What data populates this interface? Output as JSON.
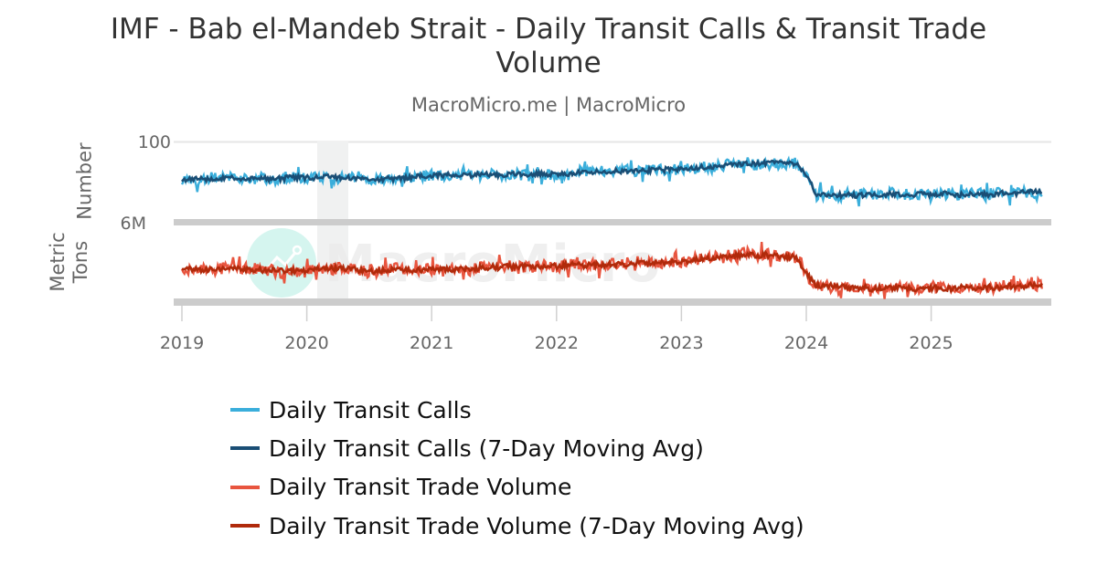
{
  "header": {
    "title_line1": "IMF - Bab el-Mandeb Strait - Daily Transit Calls & Transit Trade",
    "title_line2": "Volume",
    "subtitle": "MacroMicro.me | MacroMicro"
  },
  "watermark": {
    "text": "MacroMicro",
    "logo_color": "#d5f5ef"
  },
  "axes": {
    "top_panel": {
      "label": "Number",
      "tick_label": "100"
    },
    "bottom_panel": {
      "label_line1": "Metric",
      "label_line2": "Tons",
      "tick_label": "6M"
    },
    "x_ticks": [
      "2019",
      "2020",
      "2021",
      "2022",
      "2023",
      "2024",
      "2025"
    ]
  },
  "legend": [
    {
      "label": "Daily Transit Calls",
      "color": "#3aaedb"
    },
    {
      "label": "Daily Transit Calls (7-Day Moving Avg)",
      "color": "#1a4e75"
    },
    {
      "label": "Daily Transit Trade Volume",
      "color": "#e8553f"
    },
    {
      "label": "Daily Transit Trade Volume (7-Day Moving Avg)",
      "color": "#b02a0b"
    }
  ],
  "chart_data": [
    {
      "type": "line",
      "title": "IMF - Bab el-Mandeb Strait - Daily Transit Calls & Transit Trade Volume",
      "subtitle": "MacroMicro.me | MacroMicro",
      "panel": "top",
      "ylabel": "Number",
      "ylim": [
        0,
        100
      ],
      "y_ticks": [
        100
      ],
      "x_ticks": [
        "2019",
        "2020",
        "2021",
        "2022",
        "2023",
        "2024",
        "2025"
      ],
      "x_range": [
        "2019-01-01",
        "2025-11"
      ],
      "grid": true,
      "shaded_period": [
        "2020-02",
        "2020-05"
      ],
      "x": [
        "2019-01",
        "2019-07",
        "2020-01",
        "2020-04",
        "2020-07",
        "2021-01",
        "2021-04",
        "2021-07",
        "2022-01",
        "2022-07",
        "2023-01",
        "2023-07",
        "2023-11",
        "2023-12",
        "2024-01",
        "2024-02",
        "2024-07",
        "2025-01",
        "2025-07",
        "2025-11"
      ],
      "series": [
        {
          "name": "Daily Transit Calls",
          "color": "#3aaedb",
          "noise": 7,
          "values": [
            53,
            54,
            55,
            56,
            52,
            57,
            58,
            59,
            60,
            63,
            66,
            72,
            75,
            74,
            55,
            34,
            33,
            34,
            34,
            38
          ]
        },
        {
          "name": "Daily Transit Calls (7-Day Moving Avg)",
          "color": "#1a4e75",
          "noise": 3,
          "values": [
            53,
            54,
            55,
            56,
            52,
            57,
            58,
            59,
            60,
            63,
            66,
            72,
            75,
            74,
            55,
            34,
            33,
            34,
            34,
            38
          ]
        }
      ]
    },
    {
      "type": "line",
      "panel": "bottom",
      "ylabel": "Metric Tons",
      "ylim": [
        0,
        6000000
      ],
      "y_ticks": [
        "6M"
      ],
      "x_ticks": [
        "2019",
        "2020",
        "2021",
        "2022",
        "2023",
        "2024",
        "2025"
      ],
      "grid": true,
      "x": [
        "2019-01",
        "2019-07",
        "2020-01",
        "2020-04",
        "2020-07",
        "2021-01",
        "2021-04",
        "2021-07",
        "2022-01",
        "2022-07",
        "2023-01",
        "2023-07",
        "2023-11",
        "2023-12",
        "2024-01",
        "2024-02",
        "2024-07",
        "2025-01",
        "2025-07",
        "2025-11"
      ],
      "series": [
        {
          "name": "Daily Transit Trade Volume",
          "color": "#e8553f",
          "noise": 450000,
          "values": [
            2500000,
            2500000,
            2450000,
            2600000,
            2400000,
            2500000,
            2500000,
            2700000,
            2750000,
            2850000,
            3100000,
            3600000,
            3500000,
            3450000,
            2200000,
            1250000,
            1050000,
            1050000,
            1100000,
            1300000
          ]
        },
        {
          "name": "Daily Transit Trade Volume (7-Day Moving Avg)",
          "color": "#b02a0b",
          "noise": 200000,
          "values": [
            2500000,
            2500000,
            2450000,
            2600000,
            2400000,
            2500000,
            2500000,
            2700000,
            2750000,
            2850000,
            3100000,
            3600000,
            3500000,
            3450000,
            2200000,
            1250000,
            1050000,
            1050000,
            1100000,
            1300000
          ]
        }
      ]
    }
  ]
}
